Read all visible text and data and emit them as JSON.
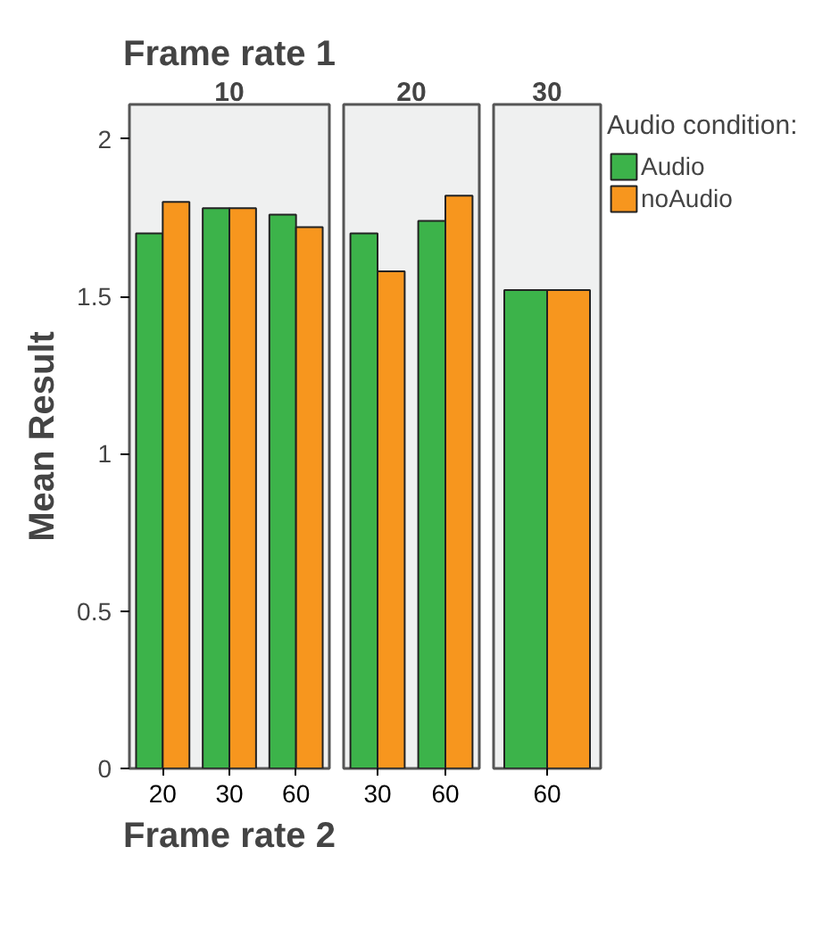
{
  "chart_data": [
    {
      "type": "bar",
      "title": "Frame rate 1",
      "subtitle": "10",
      "xlabel": "Frame rate 2",
      "ylabel": "Mean Result",
      "categories": [
        "20",
        "30",
        "60"
      ],
      "ylim": [
        0,
        2.11
      ],
      "yticks": [
        0,
        0.5,
        1,
        1.5,
        2
      ],
      "grid": false,
      "legend": false,
      "series": [
        {
          "color": "#3cb34a",
          "values": [
            1.7,
            1.78,
            1.76
          ]
        },
        {
          "color": "#f7961e",
          "values": [
            1.8,
            1.78,
            1.72
          ]
        }
      ]
    },
    {
      "type": "bar",
      "subtitle": "20",
      "categories": [
        "30",
        "60"
      ],
      "ylim": [
        0,
        2.11
      ],
      "tick_labels": "x",
      "grid": false,
      "legend": false,
      "series": [
        {
          "color": "#3cb34a",
          "values": [
            1.7,
            1.74
          ]
        },
        {
          "color": "#f7961e",
          "values": [
            1.58,
            1.82
          ]
        }
      ]
    },
    {
      "type": "bar",
      "subtitle": "30",
      "legend_title": "Audio condition:",
      "categories": [
        "60"
      ],
      "ylim": [
        0,
        2.11
      ],
      "tick_labels": "x",
      "grid": false,
      "legend": "right",
      "series": [
        {
          "name": "Audio",
          "color": "#3cb34a",
          "values": [
            1.52
          ]
        },
        {
          "name": "noAudio",
          "color": "#f7961e",
          "values": [
            1.52
          ]
        }
      ]
    }
  ]
}
